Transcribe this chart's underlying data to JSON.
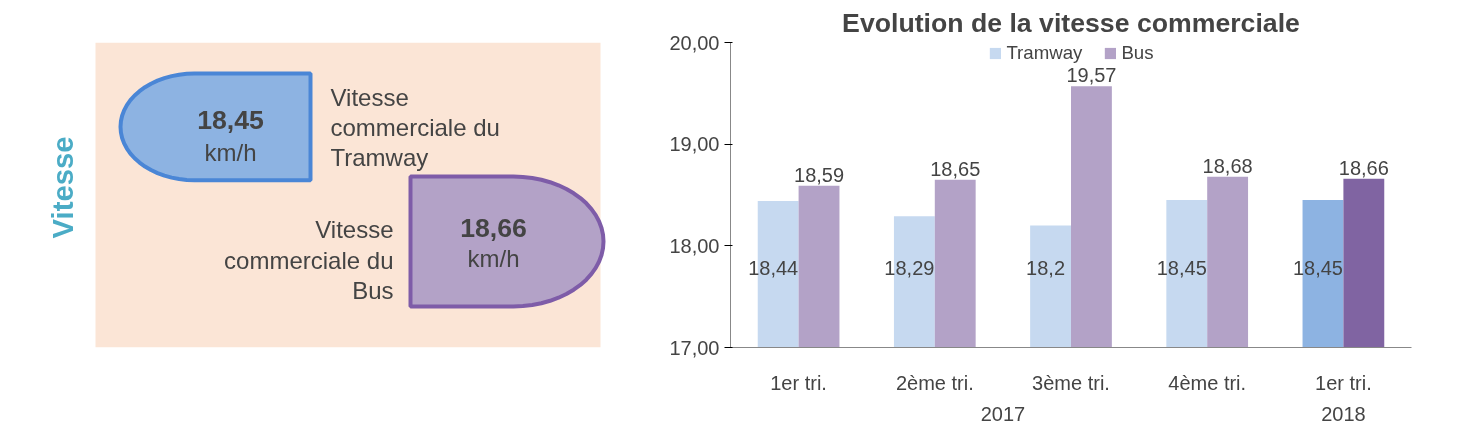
{
  "chart_data": [
    {
      "type": "other",
      "title": "Vitesse",
      "annotations": [
        "18,45",
        "km/h",
        "Vitesse commerciale du Tramway",
        "18,66",
        "km/h",
        "Vitesse commerciale du Bus"
      ]
    },
    {
      "type": "bar",
      "title": "Evolution de la vitesse commerciale",
      "categories": [
        "1er tri.",
        "2ème tri.",
        "3ème tri.",
        "4ème tri.",
        "1er tri."
      ],
      "annotations": [
        "2017",
        "2018"
      ],
      "series": [
        {
          "name": "Tramway",
          "color": "#c6d9f0",
          "colors": [
            "#c6d9f0",
            "#c6d9f0",
            "#c6d9f0",
            "#c6d9f0",
            "#8db3e2"
          ],
          "values": [
            18.44,
            18.29,
            18.2,
            18.45,
            18.45
          ],
          "value_labels": [
            "18,44",
            "18,29",
            "18,2",
            "18,45",
            "18,45"
          ]
        },
        {
          "name": "Bus",
          "color": "#b3a2c7",
          "colors": [
            "#b3a2c7",
            "#b3a2c7",
            "#b3a2c7",
            "#b3a2c7",
            "#8064a2"
          ],
          "values": [
            18.59,
            18.65,
            19.57,
            18.68,
            18.66
          ],
          "value_labels": [
            "18,59",
            "18,65",
            "19,57",
            "18,68",
            "18,66"
          ]
        }
      ],
      "ylim": [
        17,
        20
      ],
      "yticks": [
        {
          "value": 17,
          "label": "17,00"
        },
        {
          "value": 18,
          "label": "18,00"
        },
        {
          "value": 19,
          "label": "19,00"
        },
        {
          "value": 20,
          "label": "20,00"
        }
      ],
      "grid": false,
      "legend": "top"
    }
  ]
}
